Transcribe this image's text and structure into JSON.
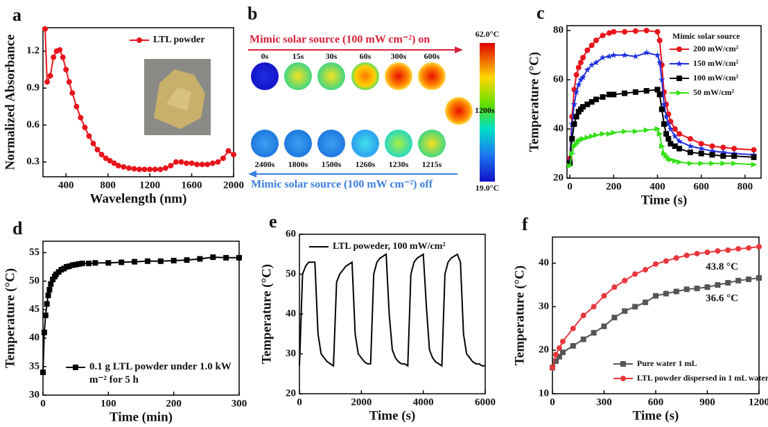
{
  "chart_data": [
    {
      "type": "line",
      "panel": "a",
      "x_label": "Wavelength (nm)",
      "y_label": "Normalized Absorbance",
      "x": [
        200,
        220,
        250,
        280,
        310,
        340,
        370,
        400,
        430,
        460,
        500,
        540,
        580,
        620,
        660,
        700,
        740,
        780,
        820,
        860,
        900,
        950,
        1000,
        1050,
        1100,
        1150,
        1200,
        1250,
        1300,
        1350,
        1400,
        1450,
        1500,
        1550,
        1600,
        1650,
        1700,
        1750,
        1800,
        1850,
        1900,
        1950,
        2000
      ],
      "series": [
        {
          "name": "LTL powder",
          "color": "#e8141b",
          "marker": "circle",
          "values": [
            1.38,
            0.95,
            1.0,
            1.15,
            1.2,
            1.21,
            1.15,
            1.05,
            0.95,
            0.86,
            0.75,
            0.66,
            0.58,
            0.51,
            0.45,
            0.4,
            0.36,
            0.33,
            0.31,
            0.29,
            0.27,
            0.26,
            0.25,
            0.245,
            0.24,
            0.24,
            0.24,
            0.24,
            0.24,
            0.25,
            0.27,
            0.3,
            0.3,
            0.29,
            0.29,
            0.28,
            0.28,
            0.28,
            0.29,
            0.3,
            0.33,
            0.39,
            0.36
          ]
        }
      ],
      "xlim": [
        180,
        2000
      ],
      "xticks": [
        400,
        800,
        1200,
        1600,
        2000
      ],
      "ylim": [
        0.18,
        1.39
      ],
      "yticks": [
        0.3,
        0.6,
        0.9,
        1.2
      ],
      "legend": "upper right"
    },
    {
      "type": "line",
      "panel": "c",
      "x_label": "Time (s)",
      "y_label": "Temperature (°C)",
      "legend_title": "Mimic solar source",
      "x": [
        0,
        10,
        20,
        30,
        40,
        50,
        60,
        80,
        100,
        120,
        150,
        180,
        200,
        250,
        300,
        350,
        400,
        410,
        420,
        430,
        440,
        450,
        460,
        480,
        500,
        550,
        600,
        650,
        700,
        750,
        840
      ],
      "series": [
        {
          "name": "200 mW/cm²",
          "color": "#e8141b",
          "marker": "circle",
          "values": [
            28,
            45,
            56,
            62,
            65,
            67,
            69,
            72,
            74,
            76,
            78,
            79,
            79.5,
            79.5,
            79.8,
            80,
            79.5,
            76,
            66,
            55,
            50,
            46,
            43,
            40,
            38,
            36,
            34,
            33,
            32.5,
            32,
            31.5
          ]
        },
        {
          "name": "150 mW/cm²",
          "color": "#1f2fe0",
          "marker": "star",
          "values": [
            27,
            42,
            50,
            55,
            58,
            60,
            61,
            64,
            66,
            67,
            69,
            69.5,
            70,
            70,
            69.5,
            71,
            70,
            67,
            60,
            50,
            45,
            42,
            40,
            37,
            35,
            33,
            32,
            31,
            30.5,
            30,
            29.5
          ]
        },
        {
          "name": "100 mW/cm²",
          "color": "#000000",
          "marker": "square",
          "values": [
            26,
            36,
            42,
            45,
            47,
            48,
            49,
            50,
            51,
            52,
            53,
            54,
            54,
            54.5,
            55,
            55.5,
            56,
            54,
            48,
            42,
            38,
            36,
            34,
            33,
            32,
            30.5,
            30,
            29.5,
            29,
            29,
            28.5
          ]
        },
        {
          "name": "50 mW/cm²",
          "color": "#33e014",
          "marker": "triangle",
          "values": [
            25,
            30,
            33,
            34,
            35,
            35.5,
            36,
            36.5,
            37,
            37.5,
            38,
            38,
            38.5,
            39,
            39,
            39.5,
            40,
            38,
            33,
            30,
            29,
            28,
            27.5,
            27,
            26.5,
            26,
            26,
            26,
            26,
            26,
            25.5
          ]
        }
      ],
      "xlim": [
        -13,
        873
      ],
      "xticks": [
        0,
        200,
        400,
        600,
        800
      ],
      "ylim": [
        20,
        82
      ],
      "yticks": [
        20,
        40,
        60,
        80
      ],
      "legend": "upper right"
    },
    {
      "type": "line",
      "panel": "d",
      "x_label": "Time (min)",
      "y_label": "Temperature (°C)",
      "x": [
        0,
        2,
        4,
        6,
        8,
        10,
        12,
        15,
        18,
        20,
        24,
        28,
        32,
        36,
        40,
        45,
        50,
        55,
        60,
        70,
        80,
        100,
        120,
        140,
        160,
        180,
        200,
        220,
        240,
        260,
        280,
        300
      ],
      "series": [
        {
          "name": "0.1 g LTL powder under 1.0 kW m⁻² for 5 h",
          "color": "#000000",
          "marker": "square",
          "values": [
            34,
            41,
            44,
            46,
            47.5,
            48.5,
            49.5,
            50.3,
            50.8,
            51.2,
            51.6,
            52,
            52.2,
            52.5,
            52.6,
            52.8,
            52.9,
            53,
            53.1,
            53.1,
            53.2,
            53.2,
            53.3,
            53.4,
            53.5,
            53.5,
            53.6,
            53.7,
            53.9,
            54.2,
            54.1,
            54.1
          ]
        }
      ],
      "xlim": [
        0,
        300
      ],
      "xticks": [
        0,
        100,
        200,
        300
      ],
      "ylim": [
        30,
        57
      ],
      "yticks": [
        30,
        35,
        40,
        45,
        50,
        55
      ],
      "legend": "lower right"
    },
    {
      "type": "line",
      "panel": "e",
      "x_label": "Time (s)",
      "y_label": "Temperature (°C)",
      "x": [
        0,
        100,
        200,
        300,
        400,
        500,
        600,
        700,
        800,
        900,
        1000,
        1100,
        1200,
        1300,
        1400,
        1500,
        1600,
        1700,
        1800,
        1900,
        2000,
        2100,
        2200,
        2300,
        2400,
        2500,
        2600,
        2700,
        2800,
        2900,
        3000,
        3100,
        3200,
        3300,
        3400,
        3500,
        3600,
        3700,
        3800,
        3900,
        4000,
        4100,
        4200,
        4300,
        4400,
        4500,
        4600,
        4700,
        4800,
        4900,
        5000,
        5100,
        5200,
        5300,
        5400,
        5500,
        5600,
        5700,
        5800,
        5900,
        6000
      ],
      "series": [
        {
          "name": "LTL poweder, 100 mW/cm²",
          "color": "#000000",
          "values": [
            27,
            50,
            52,
            53,
            53,
            53,
            35,
            30,
            29,
            28,
            27.5,
            27,
            48,
            50,
            51,
            52,
            52.5,
            53,
            35,
            30,
            29,
            28,
            27.5,
            27.5,
            50,
            53,
            54,
            54.5,
            55,
            40,
            31,
            29,
            28,
            27.5,
            27.5,
            27,
            50,
            53,
            54,
            54.5,
            55,
            42,
            31,
            29,
            28,
            27.5,
            27,
            50,
            53,
            54,
            54.5,
            55,
            53,
            35,
            30,
            29,
            28,
            27.5,
            27.5,
            27,
            27
          ]
        }
      ],
      "xlim": [
        0,
        6000
      ],
      "xticks": [
        0,
        2000,
        4000,
        6000
      ],
      "ylim": [
        20,
        60
      ],
      "yticks": [
        20,
        30,
        40,
        50,
        60
      ],
      "legend": "upper left"
    },
    {
      "type": "line",
      "panel": "f",
      "x_label": "Time (s)",
      "y_label": "Temperature (°C)",
      "x": [
        0,
        20,
        40,
        60,
        120,
        180,
        240,
        300,
        360,
        420,
        480,
        540,
        600,
        660,
        720,
        780,
        840,
        900,
        960,
        1020,
        1080,
        1140,
        1200
      ],
      "series": [
        {
          "name": "Pure water 1 mL",
          "color": "#555555",
          "marker": "square",
          "values": [
            16,
            17.5,
            18.5,
            19.5,
            21,
            22.5,
            24,
            25.5,
            27.5,
            29,
            30,
            31,
            32.5,
            33,
            33.5,
            34,
            34.2,
            34.5,
            35,
            35.5,
            36,
            36.3,
            36.6
          ]
        },
        {
          "name": "LTL powder dispersed in 1 mL water",
          "color": "#e8383d",
          "marker": "circle",
          "values": [
            16,
            19,
            20.5,
            22,
            25,
            28,
            30,
            32.5,
            34.5,
            36,
            37.5,
            38.5,
            39.8,
            40.5,
            41.2,
            41.8,
            42.2,
            42.5,
            42.8,
            43,
            43.3,
            43.5,
            43.8
          ]
        }
      ],
      "annotations": [
        "43.8 °C",
        "36.6 °C"
      ],
      "xlim": [
        0,
        1200
      ],
      "xticks": [
        0,
        300,
        600,
        900,
        1200
      ],
      "ylim": [
        10,
        46
      ],
      "yticks": [
        10,
        20,
        30,
        40
      ],
      "legend": "lower right"
    }
  ],
  "thermal_images": {
    "panel": "b",
    "on_label": "Mimic solar source (100 mW cm⁻²) on",
    "off_label": "Mimic solar source (100 mW cm⁻²) off",
    "on_times": [
      "0s",
      "15s",
      "30s",
      "60s",
      "300s",
      "600s"
    ],
    "peak_time": "1200s",
    "off_times": [
      "2400s",
      "1800s",
      "1500s",
      "1260s",
      "1230s",
      "1215s"
    ],
    "scale_max": "62.0°C",
    "scale_min": "19.0°C"
  }
}
